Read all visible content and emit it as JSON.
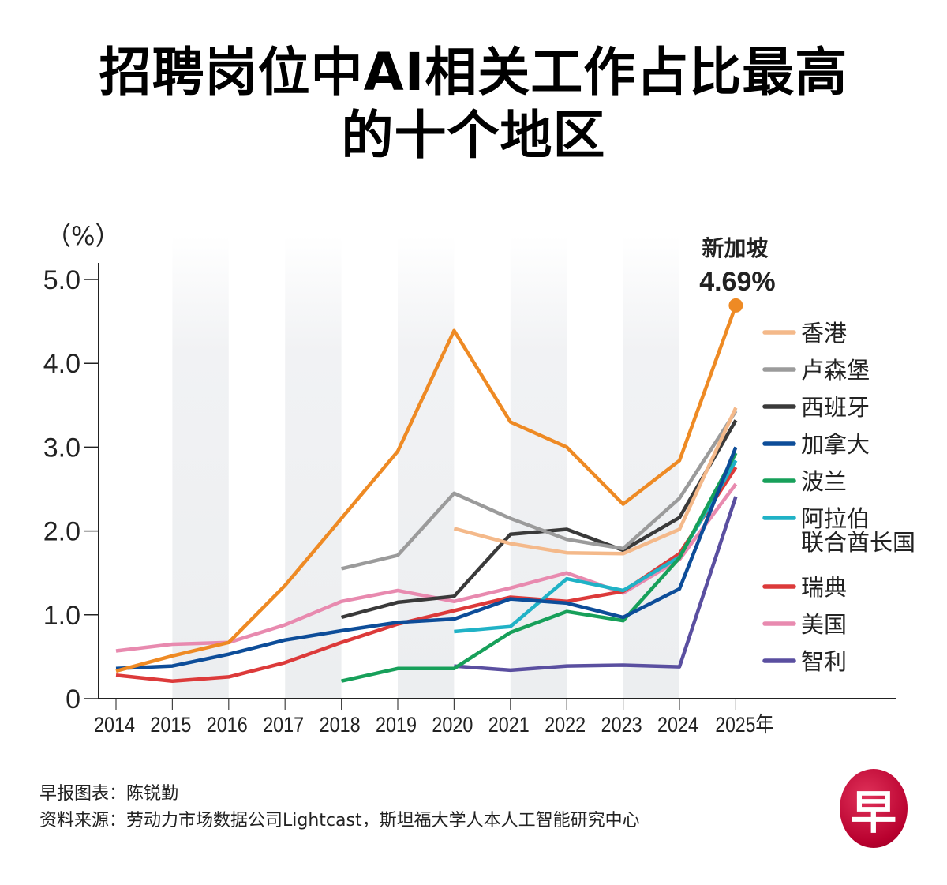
{
  "title": {
    "line1": "招聘岗位中AI相关工作占比最高",
    "line2": "的十个地区"
  },
  "footer": {
    "credit": "早报图表：陈锐勤",
    "source": "资料来源：劳动力市场数据公司Lightcast，斯坦福大学人本人工智能研究中心"
  },
  "logo": {
    "glyph": "早",
    "color": "#c4103c"
  },
  "chart_data": {
    "type": "line",
    "title": "招聘岗位中AI相关工作占比最高的十个地区",
    "ylabel": "（%）",
    "xlabel": "",
    "ylim": [
      0,
      5.0
    ],
    "yticks": [
      "0",
      "1.0",
      "2.0",
      "3.0",
      "4.0",
      "5.0"
    ],
    "ytick_values": [
      0,
      1,
      2,
      3,
      4,
      5
    ],
    "x": [
      "2014",
      "2015",
      "2016",
      "2017",
      "2018",
      "2019",
      "2020",
      "2021",
      "2022",
      "2023",
      "2024",
      "2025"
    ],
    "xtick_labels": [
      "2014",
      "2015",
      "2016",
      "2017",
      "2018",
      "2019",
      "2020",
      "2021",
      "2022",
      "2023",
      "2024",
      "2025年"
    ],
    "grid": false,
    "background_bands": "alternating grey year bands",
    "legend_position": "right",
    "annotation": {
      "series": "新加坡",
      "label": "新加坡",
      "value_text": "4.69%",
      "x": "2025",
      "y": 4.69
    },
    "series": [
      {
        "name": "新加坡",
        "color": "#ee8a24",
        "in_legend": false,
        "values": [
          0.33,
          0.51,
          0.67,
          1.35,
          2.15,
          2.95,
          4.39,
          3.3,
          3.0,
          2.32,
          2.84,
          4.69
        ]
      },
      {
        "name": "香港",
        "color": "#f4b98a",
        "in_legend": true,
        "values": [
          null,
          null,
          null,
          null,
          null,
          null,
          2.03,
          1.85,
          1.74,
          1.73,
          2.02,
          3.47
        ]
      },
      {
        "name": "卢森堡",
        "color": "#9b9b9b",
        "in_legend": true,
        "values": [
          null,
          null,
          null,
          null,
          1.55,
          1.71,
          2.45,
          2.15,
          1.9,
          1.79,
          2.39,
          3.43
        ]
      },
      {
        "name": "西班牙",
        "color": "#3a3a3a",
        "in_legend": true,
        "values": [
          null,
          null,
          null,
          null,
          0.97,
          1.15,
          1.22,
          1.96,
          2.02,
          1.77,
          2.16,
          3.32
        ]
      },
      {
        "name": "加拿大",
        "color": "#0d4d99",
        "in_legend": true,
        "values": [
          0.36,
          0.39,
          0.53,
          0.7,
          0.81,
          0.91,
          0.95,
          1.19,
          1.14,
          0.97,
          1.31,
          3.0
        ]
      },
      {
        "name": "波兰",
        "color": "#17a05a",
        "in_legend": true,
        "values": [
          null,
          null,
          null,
          null,
          0.21,
          0.36,
          0.36,
          0.79,
          1.04,
          0.93,
          1.68,
          2.93
        ]
      },
      {
        "name": "阿拉伯联合酋长国",
        "legend_lines": [
          "阿拉伯",
          "联合酋长国"
        ],
        "color": "#20b2c6",
        "in_legend": true,
        "values": [
          null,
          null,
          null,
          null,
          null,
          null,
          0.8,
          0.86,
          1.43,
          1.29,
          1.69,
          2.84
        ]
      },
      {
        "name": "瑞典",
        "color": "#dc3a3a",
        "in_legend": true,
        "values": [
          0.28,
          0.21,
          0.26,
          0.43,
          0.67,
          0.89,
          1.05,
          1.21,
          1.16,
          1.28,
          1.73,
          2.76
        ]
      },
      {
        "name": "美国",
        "color": "#e88aaf",
        "in_legend": true,
        "values": [
          0.57,
          0.65,
          0.67,
          0.88,
          1.16,
          1.29,
          1.16,
          1.32,
          1.5,
          1.26,
          1.66,
          2.56
        ]
      },
      {
        "name": "智利",
        "color": "#5a4fa0",
        "in_legend": true,
        "values": [
          null,
          null,
          null,
          null,
          null,
          null,
          0.39,
          0.34,
          0.39,
          0.4,
          0.38,
          2.41
        ]
      }
    ]
  }
}
